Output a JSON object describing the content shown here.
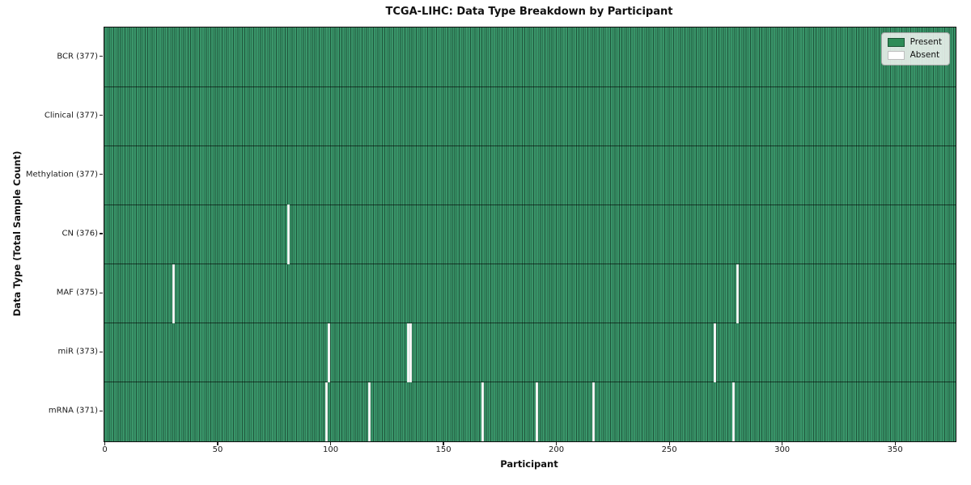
{
  "chart_data": {
    "type": "heatmap",
    "title": "TCGA-LIHC: Data Type Breakdown by Participant",
    "xlabel": "Participant",
    "ylabel": "Data Type (Total Sample Count)",
    "x_min": 0,
    "x_max": 377,
    "x_ticks": [
      0,
      50,
      100,
      150,
      200,
      250,
      300,
      350
    ],
    "n_participants": 377,
    "rows": [
      {
        "label": "BCR (377)",
        "data_type": "BCR",
        "total": 377,
        "absent_participants": []
      },
      {
        "label": "Clinical (377)",
        "data_type": "Clinical",
        "total": 377,
        "absent_participants": []
      },
      {
        "label": "Methylation (377)",
        "data_type": "Methylation",
        "total": 377,
        "absent_participants": []
      },
      {
        "label": "CN (376)",
        "data_type": "CN",
        "total": 376,
        "absent_participants": [
          81
        ]
      },
      {
        "label": "MAF (375)",
        "data_type": "MAF",
        "total": 375,
        "absent_participants": [
          30,
          280
        ]
      },
      {
        "label": "miR (373)",
        "data_type": "miR",
        "total": 373,
        "absent_participants": [
          99,
          134,
          135,
          270
        ]
      },
      {
        "label": "mRNA (371)",
        "data_type": "mRNA",
        "total": 371,
        "absent_participants": [
          98,
          117,
          167,
          191,
          216,
          278
        ]
      }
    ],
    "legend": {
      "position": "upper right",
      "entries": [
        {
          "label": "Present",
          "color": "#2e8b57",
          "border": "rgba(0,0,0,0.4)"
        },
        {
          "label": "Absent",
          "color": "#ffffff",
          "border": "#bdbdbd"
        }
      ]
    },
    "colors": {
      "present": "#2e8b57",
      "absent": "#ffffff",
      "cell_edge": "#1e5037",
      "row_separator": "#14301f",
      "plot_border": "#101010",
      "legend_background": "#eff2ef"
    },
    "grid": "cell-edges",
    "axis_tick_label_fontsize": 10
  }
}
